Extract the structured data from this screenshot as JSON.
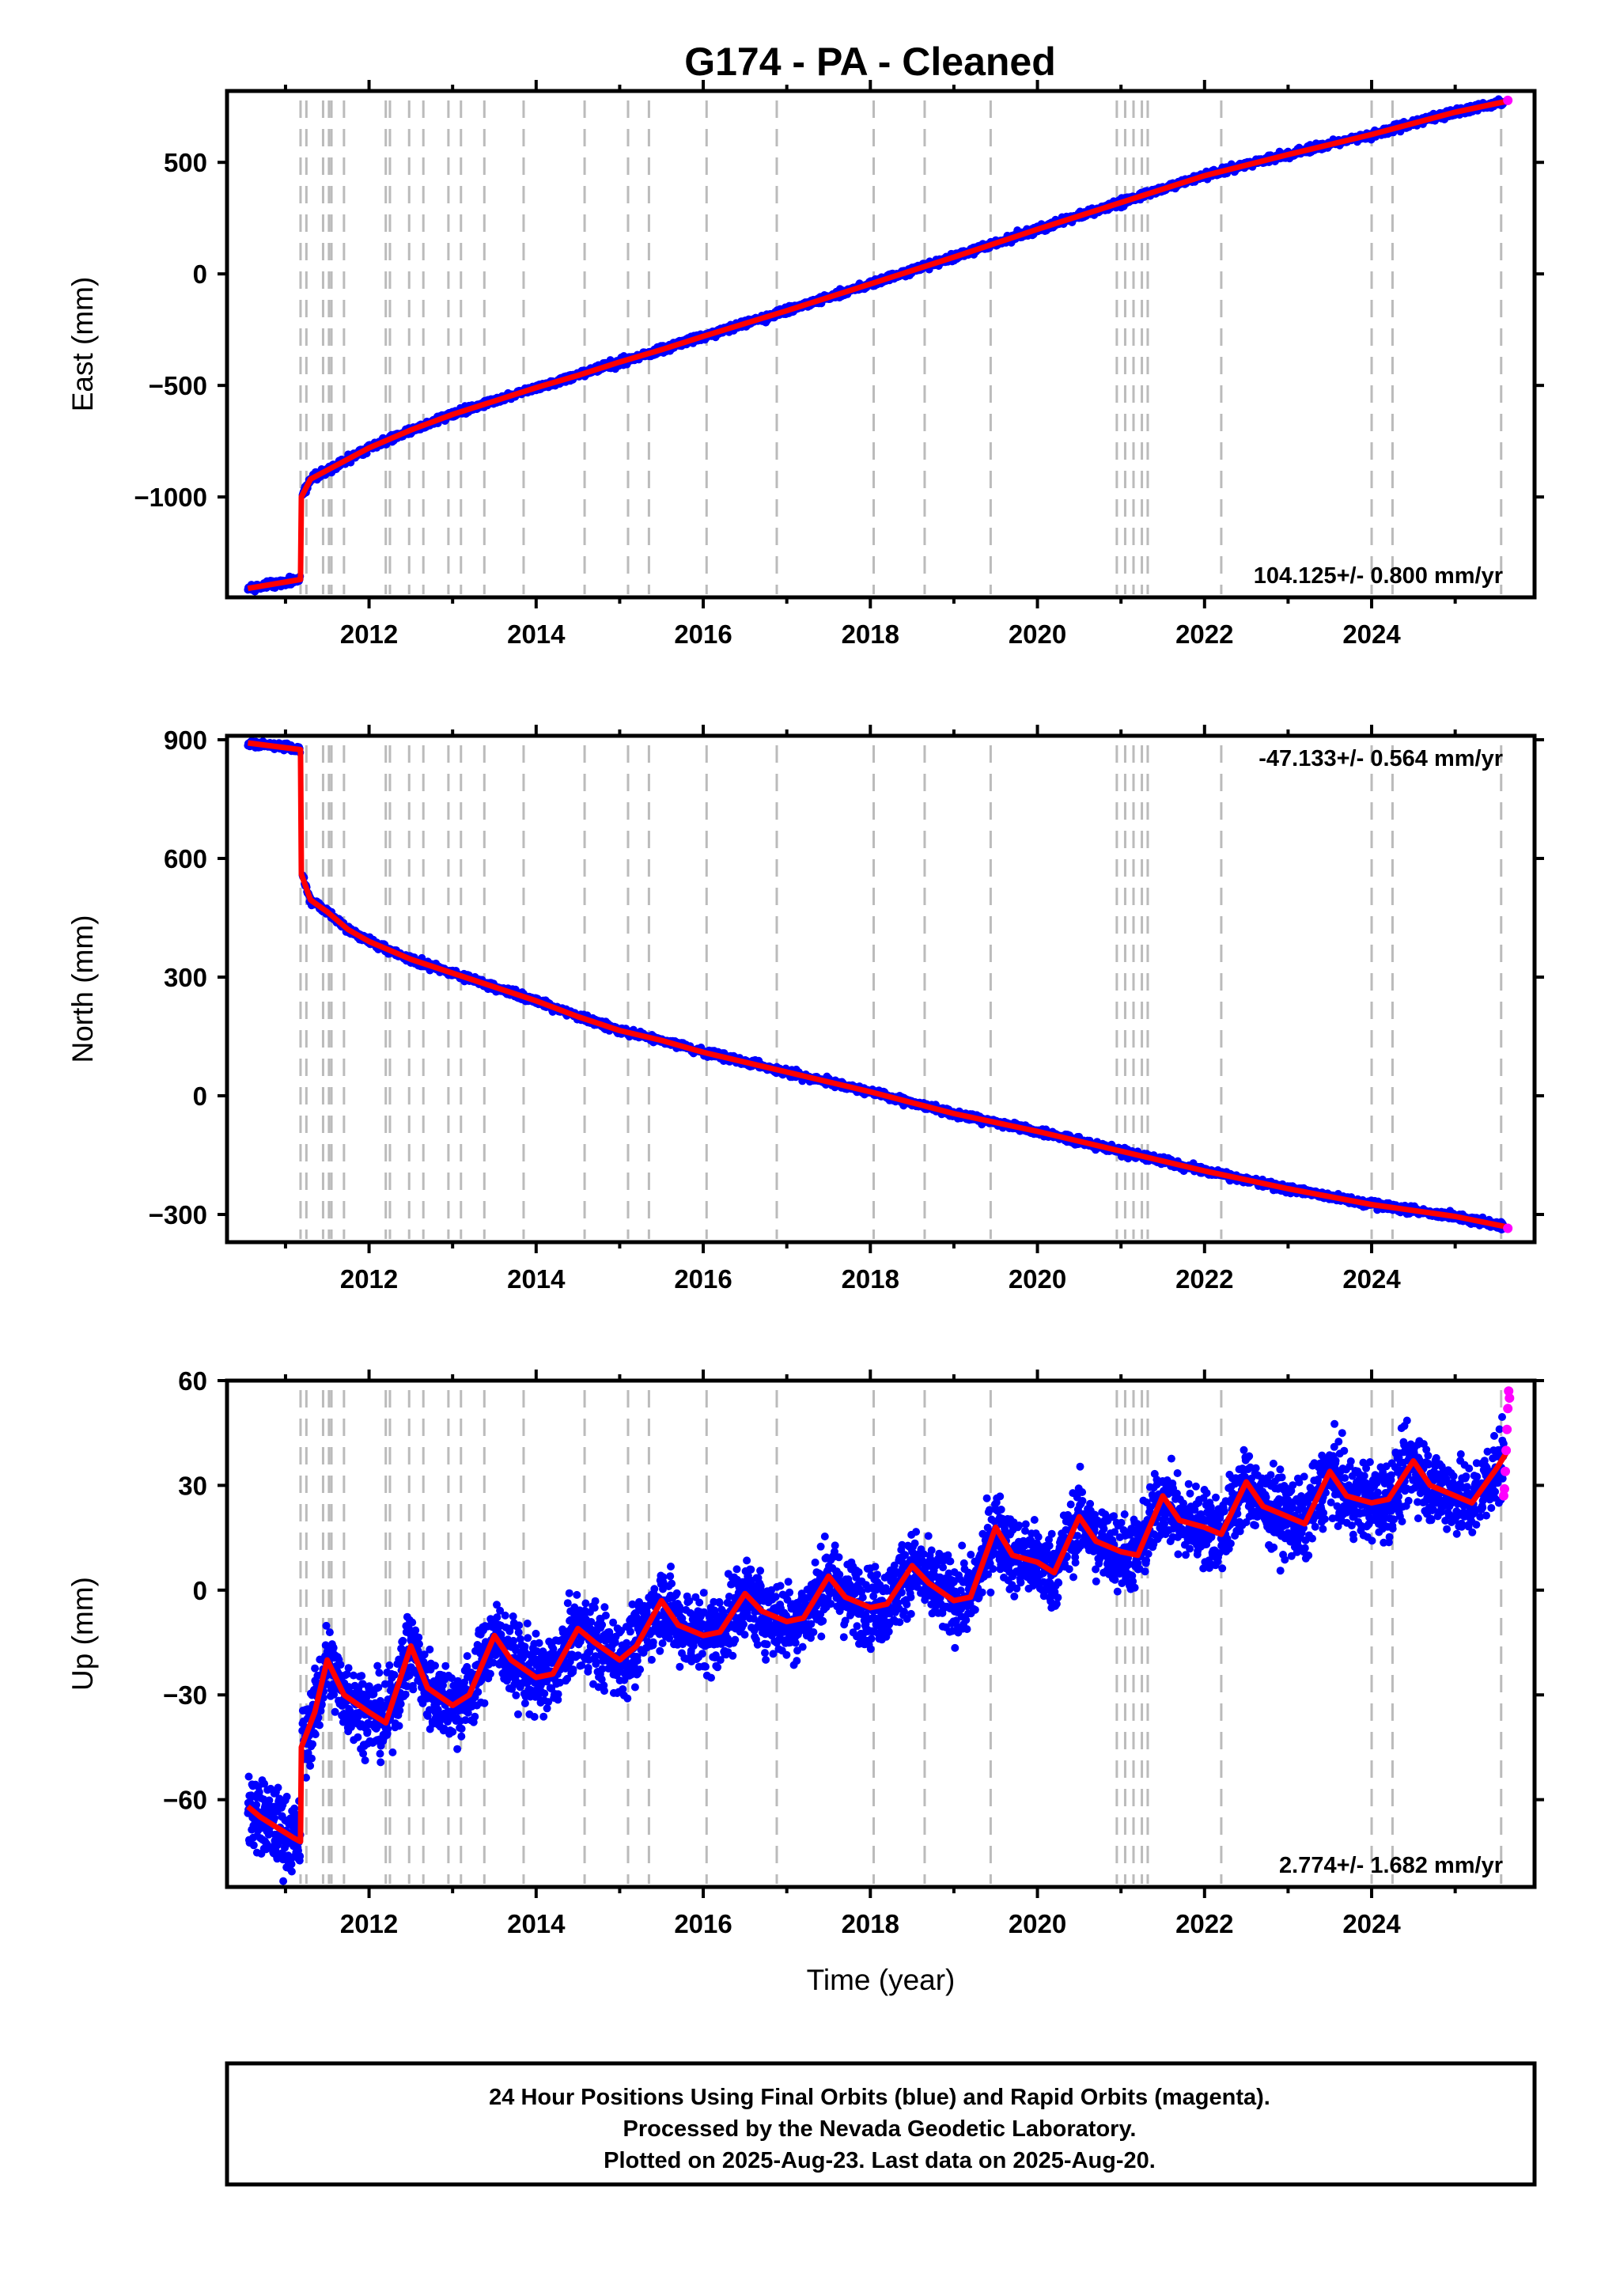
{
  "chart_data": {
    "type": "scatter",
    "title": "G174  - PA - Cleaned",
    "xlabel": "Time (year)",
    "x_ticks": [
      2012,
      2014,
      2016,
      2018,
      2020,
      2022,
      2024
    ],
    "xlim": [
      2010.3,
      2025.95
    ],
    "grid": false,
    "legend": "none",
    "colors": {
      "final_orbits": "#0000ff",
      "rapid_orbits": "#ff00ff",
      "model": "#ff0000",
      "equipment_change_lines": "#bbbbbb"
    },
    "equipment_change_epochs": [
      2011.18,
      2011.25,
      2011.45,
      2011.52,
      2011.55,
      2011.7,
      2012.2,
      2012.25,
      2012.48,
      2012.65,
      2012.95,
      2013.1,
      2013.38,
      2013.85,
      2014.58,
      2015.1,
      2015.35,
      2016.04,
      2016.88,
      2018.04,
      2018.65,
      2019.44,
      2020.95,
      2021.05,
      2021.15,
      2021.25,
      2021.32,
      2022.2,
      2024.0,
      2024.25,
      2025.55
    ],
    "footer": [
      "24 Hour Positions Using Final Orbits (blue) and Rapid Orbits (magenta).",
      "Processed by the Nevada Geodetic Laboratory.",
      "Plotted on 2025-Aug-23. Last data on 2025-Aug-20."
    ],
    "panels": [
      {
        "name": "east",
        "ylabel": "East (mm)",
        "ylim": [
          -1450,
          820
        ],
        "y_ticks": [
          500,
          0,
          -500,
          -1000
        ],
        "y_tick_labels": [
          "500",
          "0",
          "−500",
          "−1000"
        ],
        "rate_text": "104.125+/- 0.800 mm/yr",
        "rate_position": "bottom-right",
        "series": [
          {
            "name": "",
            "style": "model",
            "x": [
              2010.55,
              2011.18,
              2011.19,
              2011.3,
              2011.5,
              2011.75,
              2012.0,
              2012.5,
              2013.0,
              2013.5,
              2014.0,
              2014.5,
              2015.0,
              2015.5,
              2016.0,
              2017.0,
              2018.0,
              2019.0,
              2020.0,
              2021.0,
              2022.0,
              2023.0,
              2024.0,
              2025.0,
              2025.63
            ],
            "y": [
              -1410,
              -1370,
              -1000,
              -920,
              -880,
              -830,
              -780,
              -700,
              -630,
              -570,
              -510,
              -455,
              -395,
              -340,
              -280,
              -165,
              -45,
              75,
              200,
              320,
              440,
              535,
              625,
              725,
              775
            ]
          },
          {
            "name": "",
            "style": "rapid",
            "x": [
              2025.63
            ],
            "y": [
              778
            ]
          }
        ]
      },
      {
        "name": "north",
        "ylabel": "North (mm)",
        "ylim": [
          -370,
          910
        ],
        "y_ticks": [
          900,
          600,
          300,
          0,
          -300
        ],
        "y_tick_labels": [
          "900",
          "600",
          "300",
          "0",
          "−300"
        ],
        "rate_text": "-47.133+/- 0.564 mm/yr",
        "rate_position": "top-right",
        "series": [
          {
            "name": "",
            "style": "model",
            "x": [
              2010.55,
              2011.18,
              2011.19,
              2011.3,
              2011.5,
              2011.75,
              2012.0,
              2012.5,
              2013.0,
              2013.5,
              2014.0,
              2014.5,
              2015.0,
              2015.5,
              2016.0,
              2017.0,
              2018.0,
              2019.0,
              2020.0,
              2021.0,
              2022.0,
              2023.0,
              2024.0,
              2025.0,
              2025.63
            ],
            "y": [
              892,
              875,
              560,
              495,
              465,
              420,
              390,
              345,
              310,
              275,
              240,
              200,
              165,
              140,
              110,
              60,
              10,
              -45,
              -90,
              -140,
              -190,
              -235,
              -275,
              -305,
              -332
            ]
          },
          {
            "name": "",
            "style": "rapid",
            "x": [
              2025.63
            ],
            "y": [
              -335
            ]
          }
        ]
      },
      {
        "name": "up",
        "ylabel": "Up (mm)",
        "ylim": [
          -85,
          60
        ],
        "y_ticks": [
          60,
          30,
          0,
          -30,
          -60
        ],
        "y_tick_labels": [
          "60",
          "30",
          "0",
          "−30",
          "−60"
        ],
        "rate_text": "2.774+/- 1.682 mm/yr",
        "rate_position": "bottom-right",
        "series": [
          {
            "name": "",
            "style": "model",
            "x": [
              2010.55,
              2010.7,
              2010.9,
              2011.1,
              2011.18,
              2011.19,
              2011.35,
              2011.5,
              2011.7,
              2012.0,
              2012.2,
              2012.5,
              2012.7,
              2013.0,
              2013.2,
              2013.5,
              2013.7,
              2014.0,
              2014.2,
              2014.5,
              2014.7,
              2015.0,
              2015.2,
              2015.5,
              2015.7,
              2016.0,
              2016.2,
              2016.5,
              2016.7,
              2017.0,
              2017.2,
              2017.5,
              2017.7,
              2018.0,
              2018.2,
              2018.5,
              2018.7,
              2019.0,
              2019.2,
              2019.5,
              2019.7,
              2020.0,
              2020.2,
              2020.5,
              2020.7,
              2021.0,
              2021.2,
              2021.5,
              2021.7,
              2022.0,
              2022.2,
              2022.5,
              2022.7,
              2023.0,
              2023.2,
              2023.5,
              2023.7,
              2024.0,
              2024.2,
              2024.5,
              2024.7,
              2025.0,
              2025.2,
              2025.5,
              2025.63
            ],
            "y": [
              -62,
              -65,
              -68,
              -71,
              -72,
              -45,
              -35,
              -20,
              -30,
              -35,
              -38,
              -16,
              -28,
              -33,
              -30,
              -13,
              -20,
              -25,
              -24,
              -11,
              -15,
              -20,
              -16,
              -3,
              -10,
              -13,
              -12,
              -1,
              -6,
              -9,
              -8,
              4,
              -2,
              -5,
              -4,
              7,
              2,
              -3,
              -2,
              18,
              10,
              8,
              5,
              21,
              14,
              11,
              10,
              27,
              20,
              18,
              16,
              31,
              24,
              21,
              19,
              34,
              27,
              25,
              26,
              37,
              30,
              27,
              25,
              35,
              40
            ]
          },
          {
            "name": "",
            "style": "rapid",
            "x": [
              2025.58,
              2025.59,
              2025.6,
              2025.61,
              2025.62,
              2025.63,
              2025.64,
              2025.65
            ],
            "y": [
              27,
              29,
              34,
              40,
              46,
              52,
              57,
              55
            ]
          }
        ]
      }
    ]
  }
}
